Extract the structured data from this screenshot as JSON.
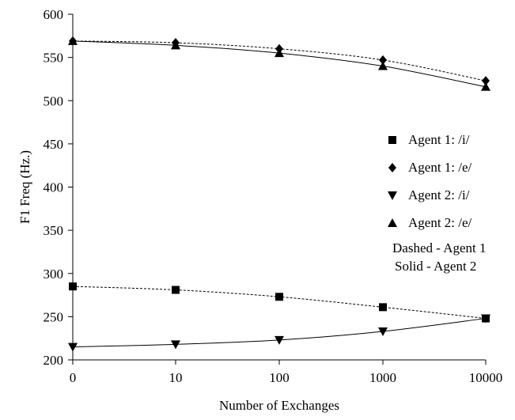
{
  "chart_data": {
    "type": "line",
    "x_categories": [
      "0",
      "10",
      "100",
      "1000",
      "10000"
    ],
    "xlabel": "Number of Exchanges",
    "ylabel": "F1 Freq (Hz.)",
    "ylim": [
      200,
      600
    ],
    "yticks": [
      200,
      250,
      300,
      350,
      400,
      450,
      500,
      550,
      600
    ],
    "grid": false,
    "legend_position": "right",
    "series": [
      {
        "name": "Agent 1: /i/",
        "marker": "square",
        "line": "dashed",
        "values": [
          285,
          281,
          273,
          261,
          248
        ]
      },
      {
        "name": "Agent 1: /e/",
        "marker": "diamond",
        "line": "dashed",
        "values": [
          569,
          567,
          560,
          547,
          523
        ]
      },
      {
        "name": "Agent 2: /i/",
        "marker": "triangle-down",
        "line": "solid",
        "values": [
          215,
          218,
          223,
          233,
          248
        ]
      },
      {
        "name": "Agent 2: /e/",
        "marker": "triangle-up",
        "line": "solid",
        "values": [
          569,
          564,
          555,
          540,
          516
        ]
      }
    ],
    "legend_notes": [
      "Dashed - Agent 1",
      "Solid - Agent 2"
    ]
  }
}
